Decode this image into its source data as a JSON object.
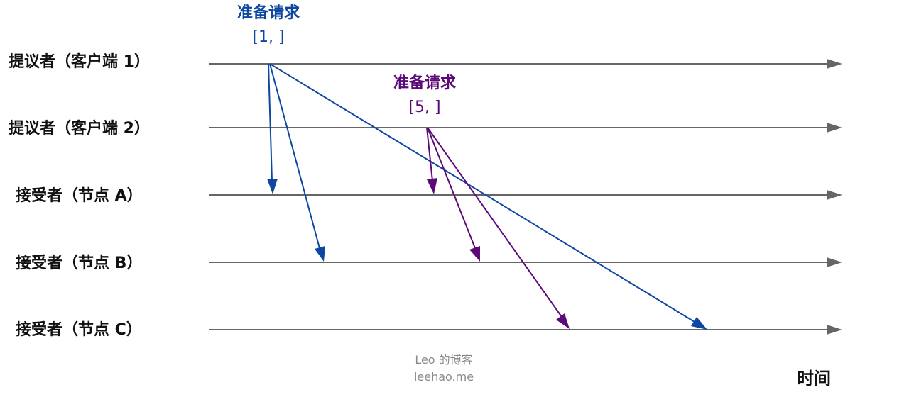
{
  "timelines": [
    {
      "label": "提议者（客户端 1）"
    },
    {
      "label": "提议者（客户端 2）"
    },
    {
      "label": "接受者（节点 A）"
    },
    {
      "label": "接受者（节点 B）"
    },
    {
      "label": "接受者（节点 C）"
    }
  ],
  "messages": [
    {
      "title": "准备请求",
      "value": "[1, ]",
      "color": "#0d47a1"
    },
    {
      "title": "准备请求",
      "value": "[5, ]",
      "color": "#5b0a78"
    }
  ],
  "axis": {
    "caption": "时间"
  },
  "watermark": {
    "line1": "Leo 的博客",
    "line2": "leehao.me"
  },
  "colors": {
    "timeline": "#666666"
  }
}
